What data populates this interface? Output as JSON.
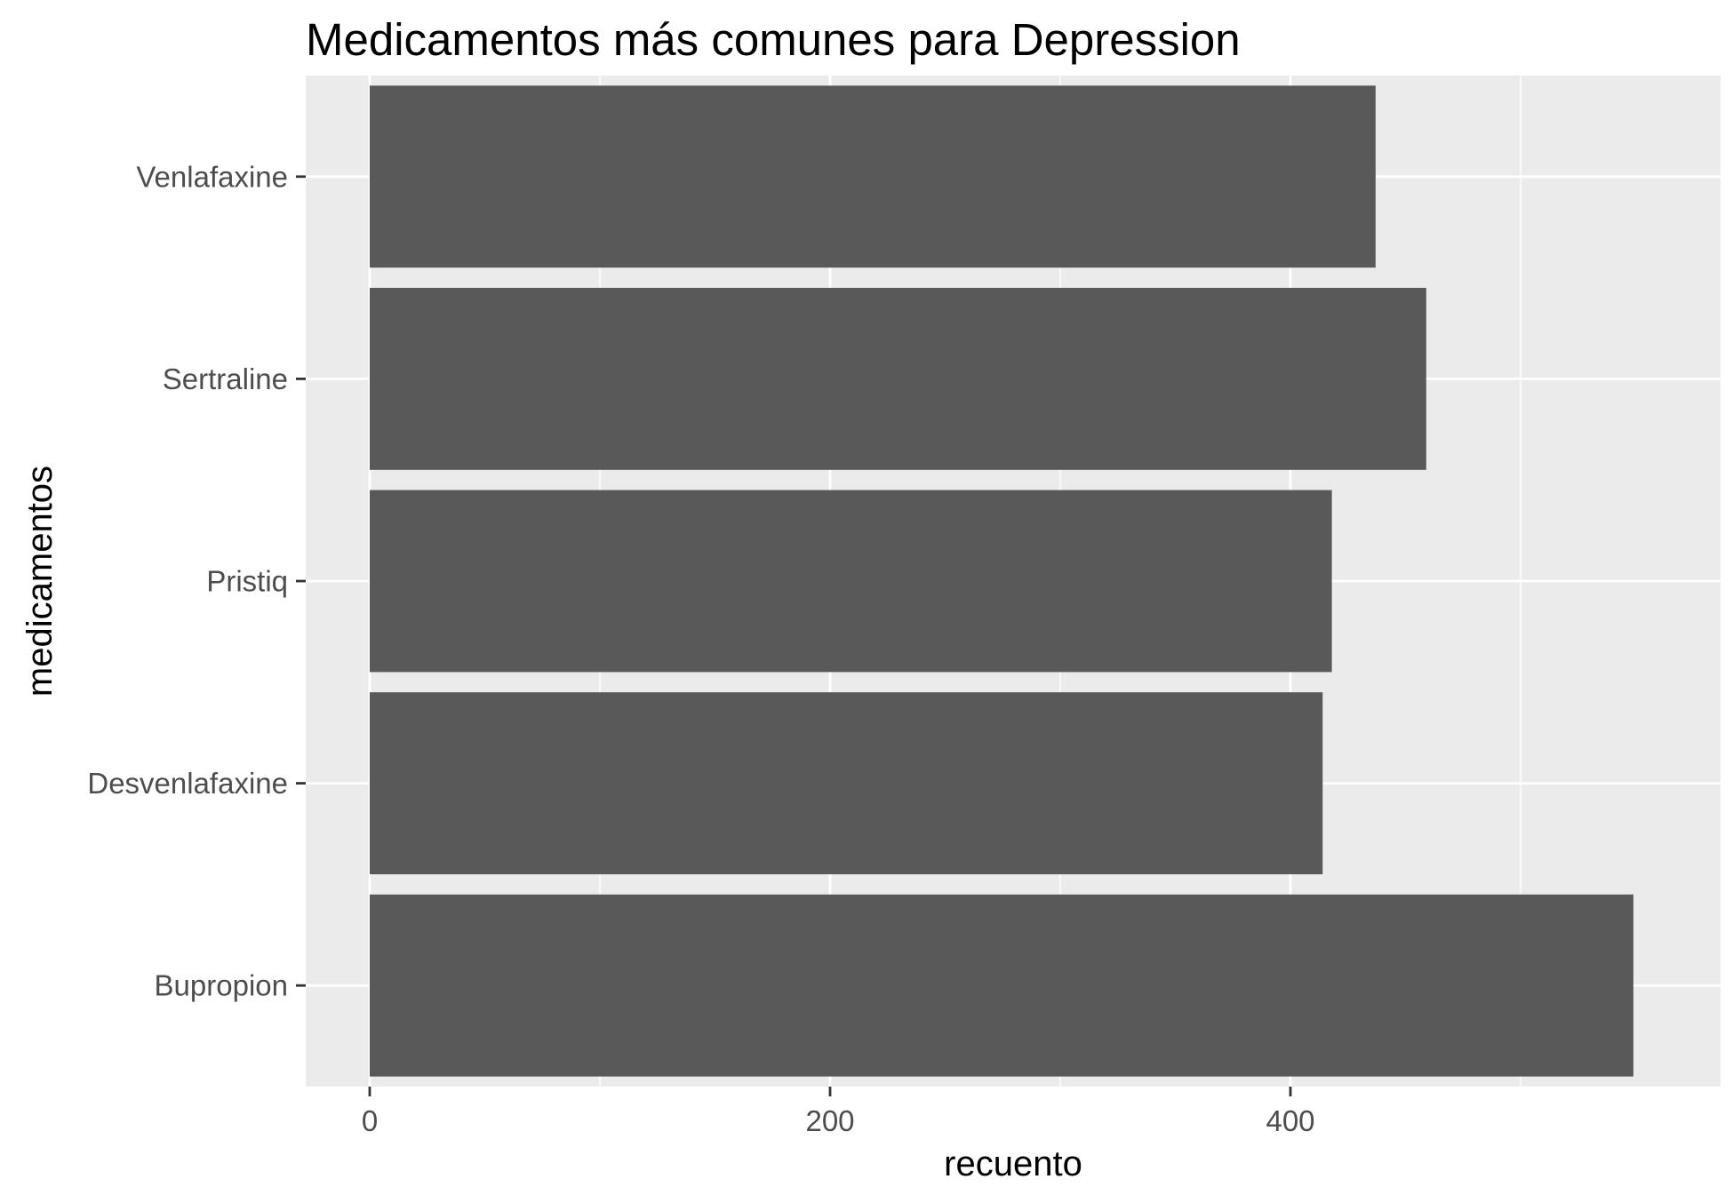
{
  "chart_data": {
    "type": "bar",
    "orientation": "horizontal",
    "title": "Medicamentos más comunes para Depression",
    "xlabel": "recuento",
    "ylabel": "medicamentos",
    "categories": [
      "Bupropion",
      "Desvenlafaxine",
      "Pristiq",
      "Sertraline",
      "Venlafaxine"
    ],
    "values": [
      549,
      414,
      418,
      459,
      437
    ],
    "xlim": [
      0,
      575
    ],
    "x_ticks": [
      0,
      200,
      400
    ],
    "x_tick_labels": [
      "0",
      "200",
      "400"
    ],
    "grid": true,
    "colors": {
      "bar": "#595959",
      "panel": "#ebebeb",
      "grid": "#ffffff",
      "tick": "#333333"
    }
  }
}
